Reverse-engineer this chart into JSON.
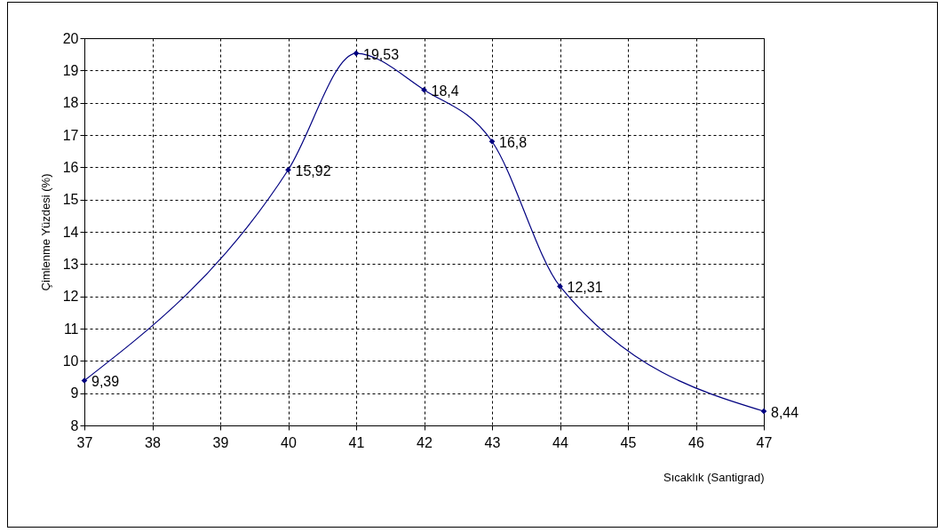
{
  "chart_data": {
    "type": "line",
    "xlabel": "Sıcaklık (Santigrad)",
    "ylabel": "Çimlenme Yüzdesi (%)",
    "x": [
      37,
      40,
      41,
      42,
      43,
      44,
      47
    ],
    "series": [
      {
        "color": "#000080",
        "values": [
          9.39,
          15.92,
          19.53,
          18.4,
          16.8,
          12.31,
          8.44
        ],
        "value_labels": [
          "9,39",
          "15,92",
          "19,53",
          "18,4",
          "16,8",
          "12,31",
          "8,44"
        ]
      }
    ],
    "xlim": [
      37,
      47
    ],
    "xticks": [
      37,
      38,
      39,
      40,
      41,
      42,
      43,
      44,
      45,
      46,
      47
    ],
    "ylim": [
      8,
      20
    ],
    "yticks": [
      8,
      9,
      10,
      11,
      12,
      13,
      14,
      15,
      16,
      17,
      18,
      19,
      20
    ],
    "grid": true,
    "marker": "diamond",
    "line_style": "solid"
  }
}
